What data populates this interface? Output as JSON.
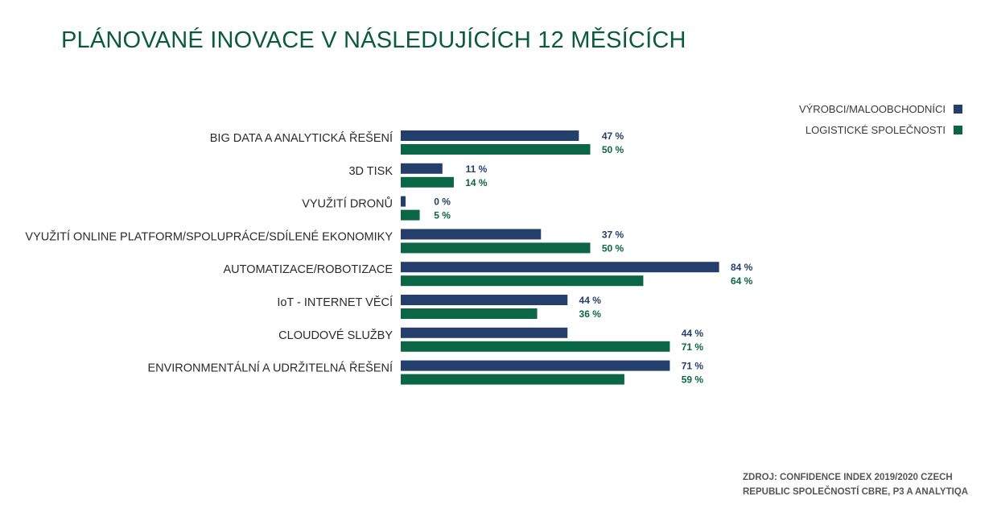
{
  "chart_data": {
    "type": "bar",
    "orientation": "horizontal",
    "title": "PLÁNOVANÉ INOVACE V NÁSLEDUJÍCÍCH 12 MĚSÍCÍCH",
    "categories": [
      "BIG DATA A ANALYTICKÁ ŘEŠENÍ",
      "3D TISK",
      "VYUŽITÍ DRONŮ",
      "VYUŽITÍ ONLINE PLATFORM/SPOLUPRÁCE/SDÍLENÉ EKONOMIKY",
      "AUTOMATIZACE/ROBOTIZACE",
      "IoT - INTERNET VĚCÍ",
      "CLOUDOVÉ SLUŽBY",
      "ENVIRONMENTÁLNÍ A UDRŽITELNÁ ŘEŠENÍ"
    ],
    "series": [
      {
        "name": "VÝROBCI/MALOOBCHODNÍCI",
        "color": "#243f6b",
        "values": [
          47,
          11,
          0,
          37,
          84,
          44,
          44,
          71
        ],
        "labels": [
          "47 %",
          "11 %",
          "0 %",
          "37 %",
          "84 %",
          "44 %",
          "44 %",
          "71 %"
        ]
      },
      {
        "name": "LOGISTICKÉ SPOLEČNOSTI",
        "color": "#0b6645",
        "values": [
          50,
          14,
          5,
          50,
          64,
          36,
          71,
          59
        ],
        "labels": [
          "50 %",
          "14 %",
          "5 %",
          "50 %",
          "64 %",
          "36 %",
          "71 %",
          "59 %"
        ]
      }
    ],
    "xlim": [
      0,
      100
    ],
    "grid": false,
    "legend_position": "top-right"
  },
  "source": {
    "line1": "ZDROJ: CONFIDENCE INDEX 2019/2020 CZECH",
    "line2": "REPUBLIC SPOLEČNOSTÍ CBRE, P3 A ANALYTIQA"
  }
}
